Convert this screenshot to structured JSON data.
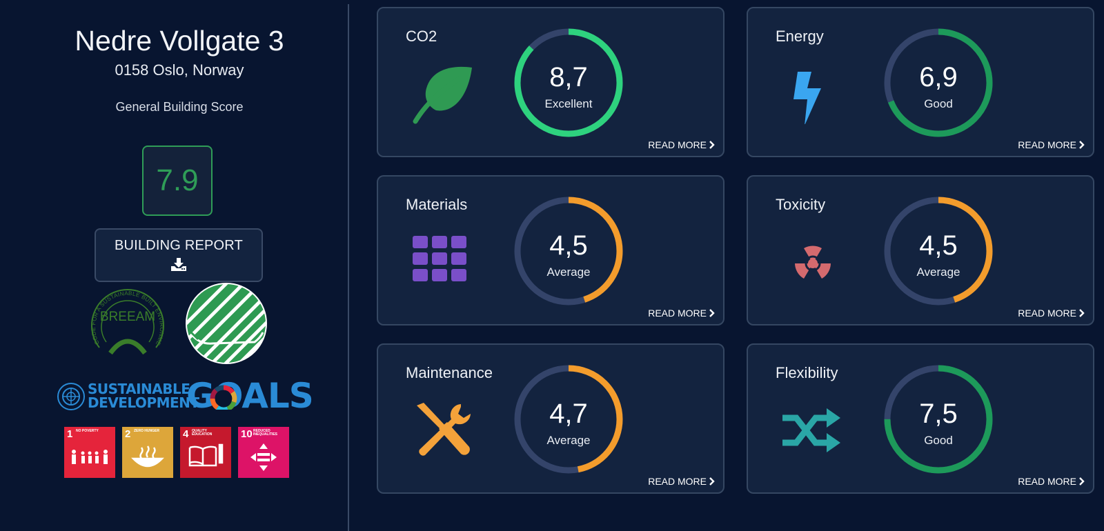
{
  "building": {
    "name": "Nedre Vollgate 3",
    "address": "0158 Oslo, Norway",
    "score_label": "General Building Score",
    "score": "7.9"
  },
  "report_button": {
    "label": "BUILDING REPORT",
    "icon": "download-icon"
  },
  "certifications": {
    "breeam": {
      "text": "BREEAM",
      "ring_text": "CODE FOR A SUSTAINABLE BUILT ENVIRONMENT"
    },
    "swan": {
      "icon": "nordic-swan-ecolabel-logo"
    }
  },
  "sdg": {
    "line1": "SUSTAINABLE",
    "line2": "DEVELOPMENT",
    "goals_word": "GOALS",
    "tiles": [
      {
        "number": "1",
        "caption": "NO POVERTY",
        "color": "#e5243b",
        "icon": "family-icon"
      },
      {
        "number": "2",
        "caption": "ZERO HUNGER",
        "color": "#dda63a",
        "icon": "bowl-icon"
      },
      {
        "number": "4",
        "caption": "QUALITY EDUCATION",
        "color": "#c5192d",
        "icon": "book-pencil-icon"
      },
      {
        "number": "10",
        "caption": "REDUCED INEQUALITIES",
        "color": "#dd1367",
        "icon": "equality-arrows-icon"
      }
    ]
  },
  "colors": {
    "background": "#081530",
    "card": "#13233f",
    "ring_track": "#34446a",
    "excellent": "#2ed27e",
    "good": "#1d9a5a",
    "average": "#f39c2c",
    "score_green": "#2f9d57"
  },
  "cards": [
    {
      "title": "CO2",
      "value": "8,7",
      "rating": "Excellent",
      "fraction": 0.87,
      "ring_color": "#2ed27e",
      "icon": "leaf-icon",
      "read_more": "READ MORE"
    },
    {
      "title": "Energy",
      "value": "6,9",
      "rating": "Good",
      "fraction": 0.69,
      "ring_color": "#1d9a5a",
      "icon": "lightning-icon",
      "read_more": "READ MORE"
    },
    {
      "title": "Materials",
      "value": "4,5",
      "rating": "Average",
      "fraction": 0.45,
      "ring_color": "#f39c2c",
      "icon": "grid-icon",
      "read_more": "READ MORE"
    },
    {
      "title": "Toxicity",
      "value": "4,5",
      "rating": "Average",
      "fraction": 0.45,
      "ring_color": "#f39c2c",
      "icon": "radiation-icon",
      "read_more": "READ MORE"
    },
    {
      "title": "Maintenance",
      "value": "4,7",
      "rating": "Average",
      "fraction": 0.47,
      "ring_color": "#f39c2c",
      "icon": "tools-icon",
      "read_more": "READ MORE"
    },
    {
      "title": "Flexibility",
      "value": "7,5",
      "rating": "Good",
      "fraction": 0.75,
      "ring_color": "#1d9a5a",
      "icon": "shuffle-icon",
      "read_more": "READ MORE"
    }
  ]
}
